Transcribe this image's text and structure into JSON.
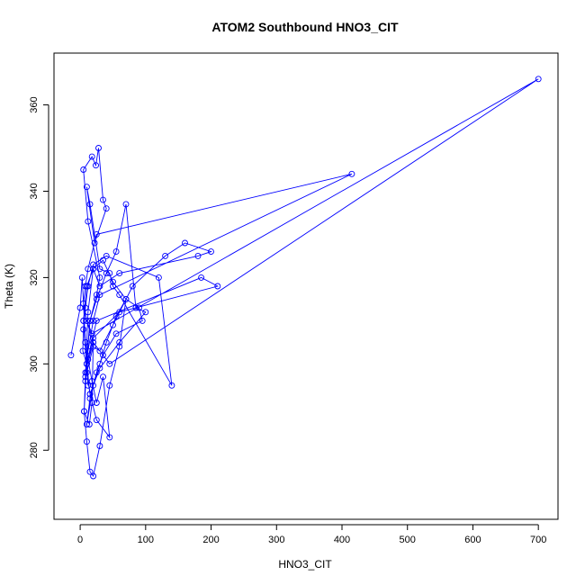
{
  "chart_data": {
    "type": "line",
    "title": "ATOM2 Southbound HNO3_CIT",
    "xlabel": "HNO3_CIT",
    "ylabel": "Theta (K)",
    "xlim": [
      -40,
      730
    ],
    "ylim": [
      264,
      372
    ],
    "xticks": [
      0,
      100,
      200,
      300,
      400,
      500,
      600,
      700
    ],
    "yticks": [
      280,
      300,
      320,
      340,
      360
    ],
    "grid": false,
    "series_color": "#0000ff",
    "series": [
      {
        "x": [
          -14,
          0,
          3,
          8,
          5,
          12,
          10,
          6,
          14,
          18,
          20,
          8,
          15,
          25,
          30,
          12,
          5,
          18,
          24,
          28,
          35,
          40,
          22,
          10,
          15,
          30,
          45,
          50,
          60,
          140,
          120,
          40,
          20,
          12,
          8,
          5,
          4,
          10,
          15,
          25,
          40,
          55,
          70,
          85,
          100,
          60,
          30,
          15,
          10,
          20,
          30,
          50,
          80,
          130,
          160,
          200,
          180,
          60,
          30,
          20,
          12,
          8,
          6,
          10,
          15,
          20,
          30,
          45,
          60,
          70,
          90,
          95,
          55,
          35,
          25,
          15,
          10,
          20,
          30,
          40,
          55,
          70,
          50,
          35,
          20,
          10,
          5,
          8,
          12,
          18,
          25,
          35,
          45,
          25,
          15,
          10,
          25,
          185,
          210,
          60,
          20,
          10,
          8,
          12,
          20,
          30,
          415,
          25,
          12,
          8,
          5,
          10,
          18,
          700,
          45,
          20,
          10
        ],
        "y": [
          302,
          313,
          320,
          305,
          310,
          295,
          300,
          289,
          286,
          291,
          305,
          298,
          310,
          316,
          320,
          333,
          345,
          348,
          346,
          350,
          338,
          336,
          328,
          341,
          337,
          322,
          321,
          318,
          316,
          295,
          320,
          325,
          323,
          318,
          313,
          308,
          303,
          300,
          310,
          315,
          321,
          326,
          337,
          313,
          312,
          305,
          299,
          293,
          298,
          304,
          303,
          309,
          318,
          325,
          328,
          326,
          325,
          321,
          318,
          322,
          312,
          297,
          289,
          282,
          275,
          274,
          281,
          295,
          304,
          315,
          313,
          310,
          307,
          302,
          298,
          292,
          286,
          295,
          300,
          305,
          311,
          315,
          319,
          324,
          322,
          318,
          310,
          305,
          301,
          296,
          291,
          297,
          283,
          287,
          293,
          300,
          310,
          320,
          318,
          312,
          306,
          300,
          296,
          303,
          310,
          316,
          344,
          330,
          322,
          318,
          314,
          310,
          307,
          366,
          300,
          305,
          310
        ]
      }
    ]
  }
}
